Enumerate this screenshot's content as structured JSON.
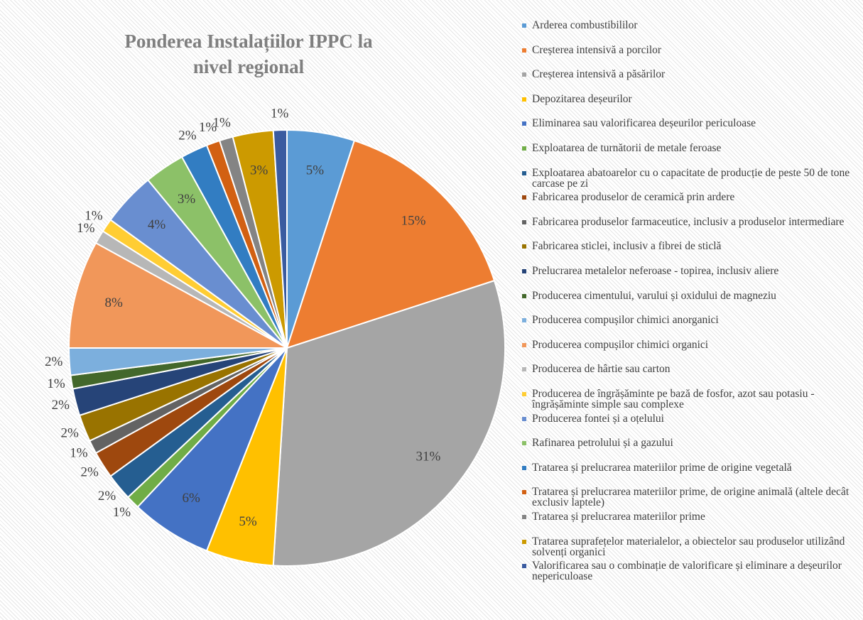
{
  "chart_data": {
    "type": "pie",
    "title": "Ponderea Instalațiilor IPPC la nivel regional",
    "categories": [
      "Arderea combustibililor",
      "Creșterea intensivă a porcilor",
      "Creșterea intensivă a păsărilor",
      "Depozitarea deșeurilor",
      "Eliminarea sau valorificarea deșeurilor periculoase",
      "Exploatarea de turnătorii de metale feroase",
      "Exploatarea abatoarelor cu o capacitate de producție de peste 50 de tone carcase pe zi",
      "Fabricarea produselor de ceramică prin ardere",
      "Fabricarea produselor farmaceutice, inclusiv a produselor intermediare",
      "Fabricarea sticlei, inclusiv a fibrei de sticlă",
      "Prelucrarea metalelor neferoase - topirea, inclusiv aliere",
      "Producerea cimentului, varului și oxidului de magneziu",
      "Producerea compușilor chimici anorganici",
      "Producerea compușilor chimici organici",
      "Producerea de hârtie sau carton",
      "Producerea de îngrășăminte pe bază de fosfor, azot sau potasiu - îngrășăminte simple sau complexe",
      "Producerea fontei și a oțelului",
      "Rafinarea petrolului și a gazului",
      "Tratarea și prelucrarea materiilor prime de origine vegetală",
      "Tratarea și prelucrarea materiilor prime, de origine animală (altele decât exclusiv laptele)",
      "Tratarea și prelucrarea materiilor prime",
      "Tratarea suprafețelor materialelor, a obiectelor sau produselor utilizând solvenți organici",
      "Valorificarea sau o combinație de valorificare și eliminare a deșeurilor nepericuloase"
    ],
    "values": [
      5,
      15,
      31,
      5,
      6,
      1,
      2,
      2,
      1,
      2,
      2,
      1,
      2,
      8,
      1,
      1,
      4,
      3,
      2,
      1,
      1,
      3,
      1
    ],
    "value_labels": [
      "5%",
      "15%",
      "31%",
      "5%",
      "6%",
      "1%",
      "2%",
      "2%",
      "1%",
      "2%",
      "2%",
      "1%",
      "2%",
      "8%",
      "1%",
      "1%",
      "4%",
      "3%",
      "2%",
      "1%",
      "1%",
      "3%",
      "1%"
    ],
    "colors": [
      "#5b9bd5",
      "#ed7d31",
      "#a5a5a5",
      "#ffc000",
      "#4472c4",
      "#70ad47",
      "#255e91",
      "#9e480e",
      "#636363",
      "#997300",
      "#264478",
      "#43682b",
      "#7cafdd",
      "#f1975a",
      "#b7b7b7",
      "#ffcd33",
      "#698ed0",
      "#8cc168",
      "#327dc2",
      "#d26012",
      "#848484",
      "#cc9a00",
      "#3a5ba0"
    ],
    "legend": "right"
  }
}
